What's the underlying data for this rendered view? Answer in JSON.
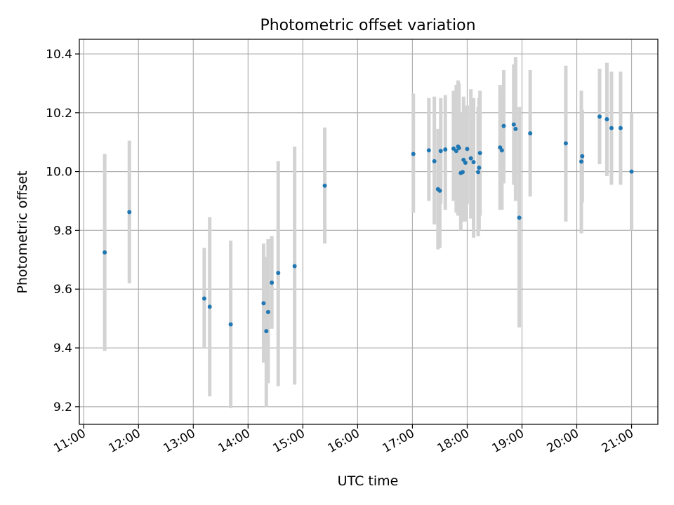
{
  "chart_data": {
    "type": "scatter",
    "title": "Photometric offset variation",
    "xlabel": "UTC time",
    "ylabel": "Photometric offset",
    "x_unit": "hours UTC",
    "xlim": [
      10.92,
      21.48
    ],
    "ylim": [
      9.14,
      10.45
    ],
    "x_ticks": [
      11,
      12,
      13,
      14,
      15,
      16,
      17,
      18,
      19,
      20,
      21
    ],
    "x_tick_labels": [
      "11:00",
      "12:00",
      "13:00",
      "14:00",
      "15:00",
      "16:00",
      "17:00",
      "18:00",
      "19:00",
      "20:00",
      "21:00"
    ],
    "y_ticks": [
      9.2,
      9.4,
      9.6,
      9.8,
      10.0,
      10.2,
      10.4
    ],
    "y_tick_labels": [
      "9.2",
      "9.4",
      "9.6",
      "9.8",
      "10.0",
      "10.2",
      "10.4"
    ],
    "grid": true,
    "colors": {
      "points": "#1f77b4",
      "errorbars": "#d3d3d3",
      "grid": "#b0b0b0"
    },
    "series": [
      {
        "x": [
          "11:23",
          "11:50",
          "13:12",
          "13:18",
          "13:41",
          "14:17",
          "14:20",
          "14:22",
          "14:26",
          "14:33",
          "14:51",
          "15:24",
          "17:01",
          "17:18",
          "17:24",
          "17:28",
          "17:30",
          "17:31",
          "17:36",
          "17:45",
          "17:48",
          "17:50",
          "17:51",
          "17:53",
          "17:55",
          "17:56",
          "17:58",
          "18:00",
          "18:04",
          "18:07",
          "18:12",
          "18:13",
          "18:14",
          "18:36",
          "18:38",
          "18:40",
          "18:51",
          "18:53",
          "18:57",
          "19:09",
          "19:48",
          "20:05",
          "20:06",
          "20:25",
          "20:33",
          "20:38",
          "20:48",
          "21:00"
        ],
        "y": [
          9.725,
          9.862,
          9.568,
          9.54,
          9.48,
          9.552,
          9.457,
          9.522,
          9.622,
          9.655,
          9.678,
          9.952,
          10.06,
          10.072,
          10.035,
          9.94,
          9.935,
          10.07,
          10.075,
          10.078,
          10.07,
          10.085,
          10.08,
          9.995,
          9.998,
          10.04,
          10.03,
          10.077,
          10.045,
          10.032,
          9.998,
          10.013,
          10.063,
          10.082,
          10.072,
          10.155,
          10.16,
          10.145,
          9.843,
          10.13,
          10.096,
          10.034,
          10.052,
          10.187,
          10.178,
          10.148,
          10.148,
          10.0
        ],
        "y_low": [
          9.39,
          9.62,
          9.4,
          9.235,
          9.195,
          9.35,
          9.2,
          9.28,
          9.465,
          9.27,
          9.275,
          9.755,
          9.86,
          9.9,
          9.82,
          9.735,
          9.74,
          9.89,
          9.87,
          9.9,
          9.86,
          9.85,
          9.87,
          9.8,
          9.83,
          9.83,
          9.83,
          9.89,
          9.84,
          9.775,
          9.78,
          9.8,
          9.85,
          9.87,
          9.87,
          9.96,
          9.955,
          9.9,
          9.47,
          9.915,
          9.83,
          9.79,
          9.895,
          10.025,
          9.985,
          9.955,
          9.955,
          9.8
        ],
        "y_high": [
          10.06,
          10.105,
          9.74,
          9.845,
          9.765,
          9.755,
          9.71,
          9.77,
          9.78,
          10.035,
          10.085,
          10.15,
          10.265,
          10.25,
          10.255,
          10.145,
          10.145,
          10.25,
          10.26,
          10.275,
          10.295,
          10.31,
          10.3,
          10.2,
          10.19,
          10.255,
          10.22,
          10.225,
          10.28,
          10.25,
          10.22,
          10.25,
          10.275,
          10.295,
          10.28,
          10.345,
          10.365,
          10.39,
          10.22,
          10.345,
          10.36,
          10.275,
          10.21,
          10.35,
          10.37,
          10.34,
          10.34,
          10.2
        ]
      }
    ]
  }
}
